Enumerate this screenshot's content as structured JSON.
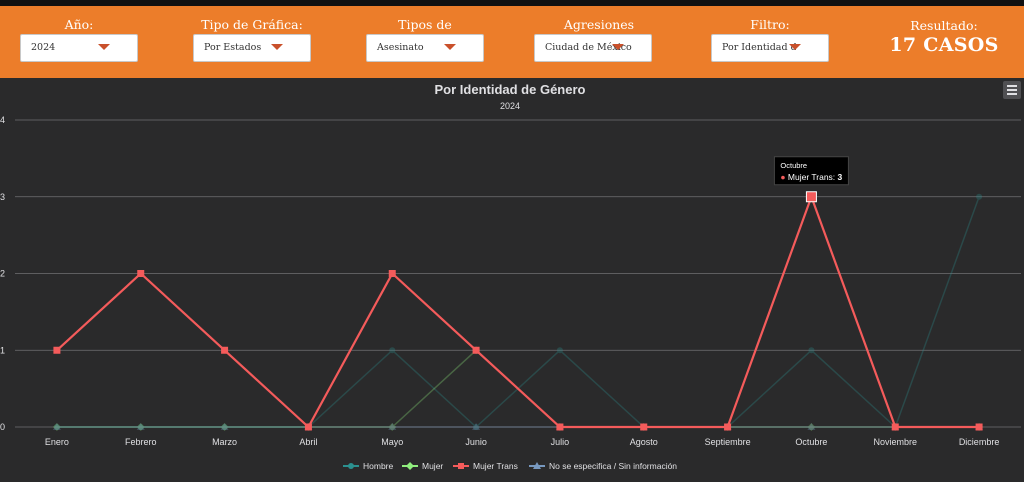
{
  "filters": [
    {
      "label": "Año:",
      "value": "2024"
    },
    {
      "label": "Tipo de Gráfica:",
      "value": "Por Estados"
    },
    {
      "label": "Tipos de incidente:",
      "value": "Asesinato"
    },
    {
      "label": "Agresiones Reportadas:",
      "value": "Ciudad de México"
    },
    {
      "label": "Filtro:",
      "value": "Por Identidad de Género"
    }
  ],
  "result": {
    "label": "Resultado:",
    "value": "17 CASOS"
  },
  "colors": {
    "accent": "#ec7d2a",
    "caret": "#c9502b",
    "background": "#2a2a2b"
  },
  "chart_data": {
    "type": "line",
    "title": "Por Identidad de Género",
    "subtitle": "2024",
    "categories": [
      "Enero",
      "Febrero",
      "Marzo",
      "Abril",
      "Mayo",
      "Junio",
      "Julio",
      "Agosto",
      "Septiembre",
      "Octubre",
      "Noviembre",
      "Diciembre"
    ],
    "yticks": [
      "0",
      "1",
      "2",
      "3",
      "4"
    ],
    "ylim": [
      0,
      4
    ],
    "grid": true,
    "legend_position": "bottom",
    "series": [
      {
        "name": "Hombre",
        "color": "#2b908f",
        "marker": "circle",
        "values": [
          0,
          0,
          0,
          0,
          1,
          0,
          1,
          0,
          0,
          1,
          0,
          3
        ]
      },
      {
        "name": "Mujer",
        "color": "#90ee7e",
        "marker": "diamond",
        "values": [
          0,
          0,
          0,
          0,
          0,
          1,
          0,
          0,
          0,
          0,
          0,
          0
        ]
      },
      {
        "name": "Mujer Trans",
        "color": "#f45b5b",
        "marker": "square",
        "values": [
          1,
          2,
          1,
          0,
          2,
          1,
          0,
          0,
          0,
          3,
          0,
          0
        ]
      },
      {
        "name": "No se especifica / Sin información",
        "color": "#7798bf",
        "marker": "triangle",
        "values": [
          0,
          0,
          0,
          0,
          0,
          0,
          0,
          0,
          0,
          0,
          0,
          0
        ]
      }
    ],
    "tooltip": {
      "header": "Octubre",
      "series": "Mujer Trans",
      "sep": ": ",
      "value": "3"
    }
  }
}
